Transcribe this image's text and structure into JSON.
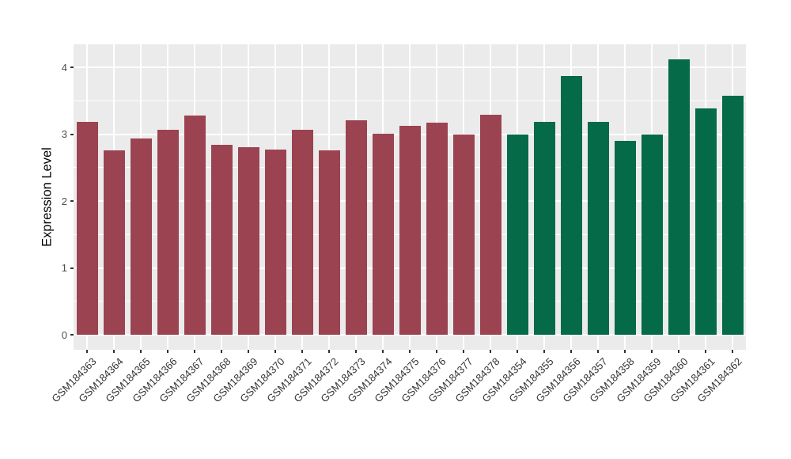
{
  "style": {
    "figure_bg": "#FFFFFF",
    "panel_bg": "#EBEBEB",
    "grid_color": "#FFFFFF",
    "axis_text_color": "#4D4D4D",
    "axis_title_color": "#000000",
    "tick_mark_color": "#333333",
    "bar_color_left_group": "#9C4351",
    "bar_color_right_group": "#046A47"
  },
  "chart_data": {
    "type": "bar",
    "title": "",
    "xlabel": "",
    "ylabel": "Expression Level",
    "ylim": [
      0,
      4.34
    ],
    "yticks": [
      0,
      1,
      2,
      3,
      4
    ],
    "yticks_minor": [
      0.5,
      1.5,
      2.5,
      3.5
    ],
    "grid": "white major and minor gridlines on gray panel",
    "legend": "none",
    "categories": [
      "GSM184363",
      "GSM184364",
      "GSM184365",
      "GSM184366",
      "GSM184367",
      "GSM184368",
      "GSM184369",
      "GSM184370",
      "GSM184371",
      "GSM184372",
      "GSM184373",
      "GSM184374",
      "GSM184375",
      "GSM184376",
      "GSM184377",
      "GSM184378",
      "GSM184354",
      "GSM184355",
      "GSM184356",
      "GSM184357",
      "GSM184358",
      "GSM184359",
      "GSM184360",
      "GSM184361",
      "GSM184362"
    ],
    "values": [
      3.18,
      2.76,
      2.93,
      3.06,
      3.28,
      2.84,
      2.8,
      2.77,
      3.06,
      2.76,
      3.21,
      3.01,
      3.13,
      3.17,
      3.0,
      3.29,
      3.0,
      3.18,
      3.87,
      3.18,
      2.9,
      3.0,
      4.12,
      3.39,
      3.57
    ],
    "groups": [
      {
        "name": "GSM184363-GSM184378",
        "color": "#9C4351",
        "start_index": 0,
        "end_index": 15
      },
      {
        "name": "GSM184354-GSM184362",
        "color": "#046A47",
        "start_index": 16,
        "end_index": 24
      }
    ]
  }
}
